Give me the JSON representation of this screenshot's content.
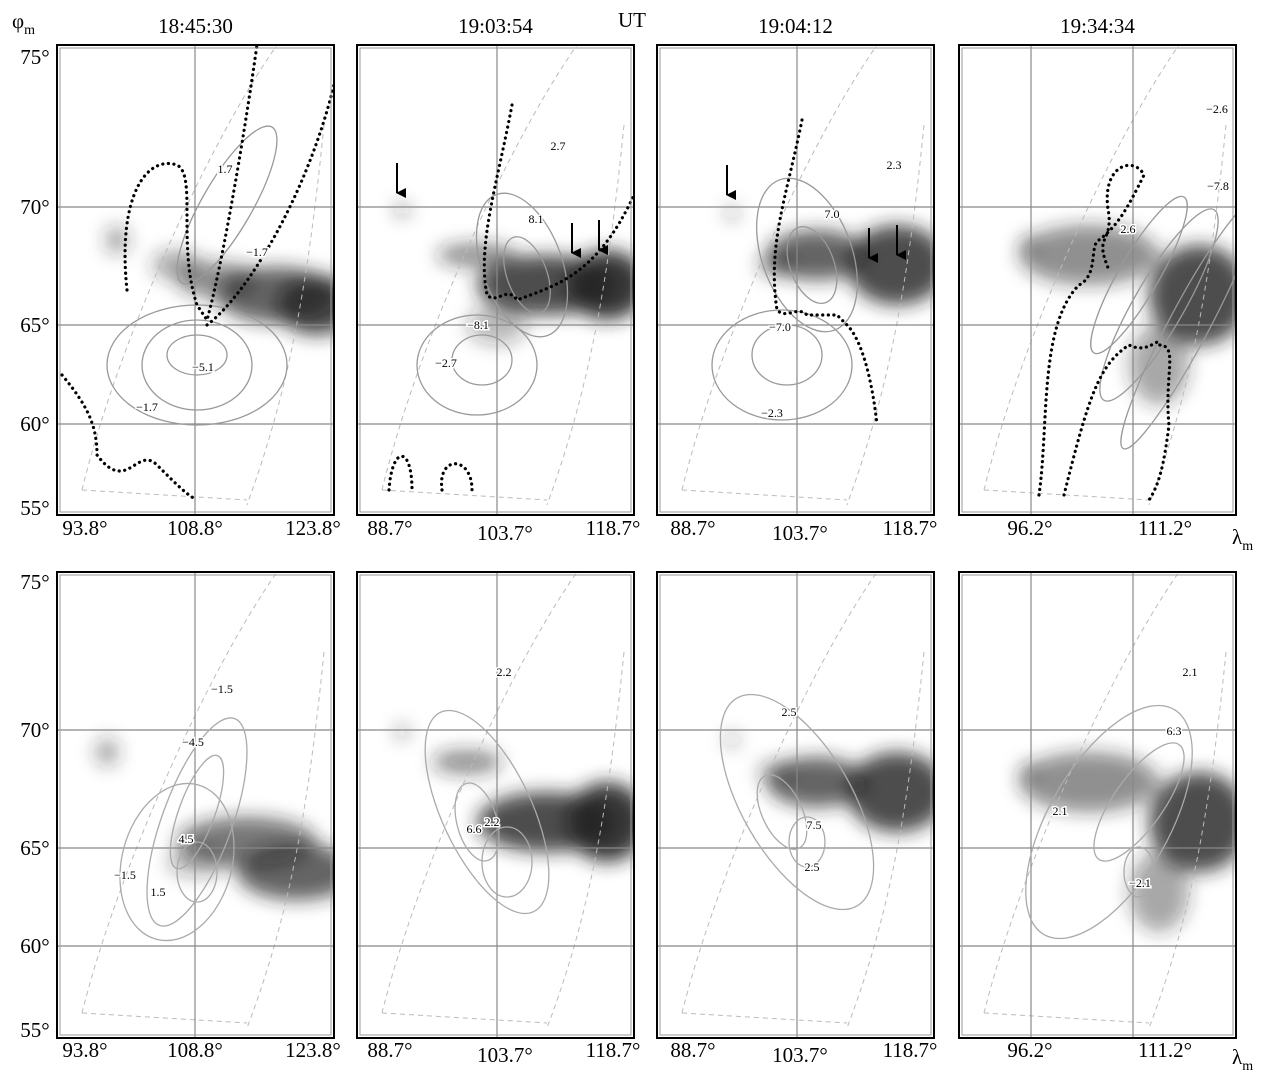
{
  "header": {
    "columns": [
      "18:45:30",
      "19:03:54",
      "19:04:12",
      "19:34:34"
    ],
    "ut": "UT",
    "lat_symbol": "φ",
    "lat_sub": "m",
    "lon_symbol": "λ",
    "lon_sub": "m"
  },
  "rows": [
    {
      "lat_ticks": [
        "75°",
        "70°",
        "65°",
        "60°",
        "55°"
      ],
      "panels": [
        {
          "lon_ticks": [
            "93.8°",
            "108.8°",
            "123.8°"
          ],
          "contour_labels": [
            "1.7",
            "−1.7",
            "−5.1",
            "−1.7"
          ]
        },
        {
          "lon_ticks": [
            "88.7°",
            "103.7°",
            "118.7°"
          ],
          "contour_labels": [
            "2.7",
            "8.1",
            "−8.1",
            "−2.7"
          ]
        },
        {
          "lon_ticks": [
            "88.7°",
            "103.7°",
            "118.7°"
          ],
          "contour_labels": [
            "2.3",
            "7.0",
            "−7.0",
            "−2.3"
          ]
        },
        {
          "lon_ticks": [
            "96.2°",
            "111.2°"
          ],
          "contour_labels": [
            "−2.6",
            "−7.8",
            "2.6"
          ]
        }
      ]
    },
    {
      "lat_ticks": [
        "75°",
        "70°",
        "65°",
        "60°",
        "55°"
      ],
      "panels": [
        {
          "lon_ticks": [
            "93.8°",
            "108.8°",
            "123.8°"
          ],
          "contour_labels": [
            "−1.5",
            "−4.5",
            "4.5",
            "−1.5",
            "1.5"
          ]
        },
        {
          "lon_ticks": [
            "88.7°",
            "103.7°",
            "118.7°"
          ],
          "contour_labels": [
            "2.2",
            "6.6",
            "2.2"
          ]
        },
        {
          "lon_ticks": [
            "88.7°",
            "103.7°",
            "118.7°"
          ],
          "contour_labels": [
            "2.5",
            "7.5",
            "2.5"
          ]
        },
        {
          "lon_ticks": [
            "96.2°",
            "111.2°"
          ],
          "contour_labels": [
            "2.1",
            "6.3",
            "2.1",
            "−2.1"
          ]
        }
      ]
    }
  ]
}
